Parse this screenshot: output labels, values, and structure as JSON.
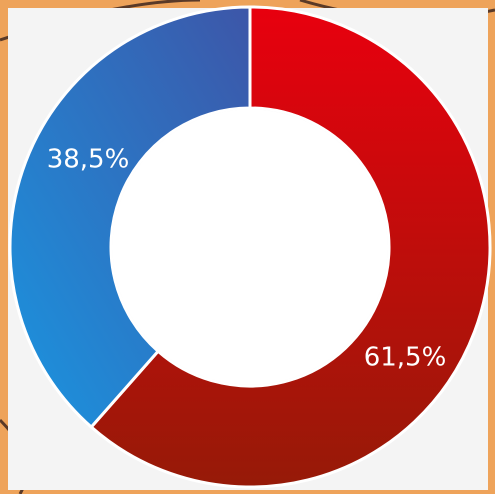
{
  "chart_data": {
    "type": "donut",
    "categories": [
      null,
      null
    ],
    "series": [
      {
        "name": null,
        "values": [
          61.5,
          38.5
        ],
        "value_labels": [
          "61,5%",
          "38,5%"
        ],
        "colors": [
          "#d2000c",
          "#1f8ad6"
        ]
      }
    ]
  }
}
